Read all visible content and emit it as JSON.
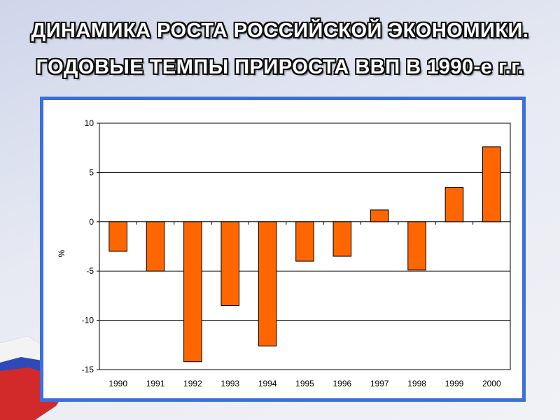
{
  "slide": {
    "title_line1": "ДИНАМИКА РОСТА РОССИЙСКОЙ ЭКОНОМИКИ.",
    "title_line2": "ГОДОВЫЕ ТЕМПЫ ПРИРОСТА ВВП В 1990-е г.г."
  },
  "colors": {
    "bar_fill": "#ff6600",
    "bar_stroke": "#000000",
    "frame": "#3a6fdc",
    "gridline": "#000000"
  },
  "chart_data": {
    "type": "bar",
    "title": "",
    "xlabel": "",
    "ylabel": "%",
    "categories": [
      "1990",
      "1991",
      "1992",
      "1993",
      "1994",
      "1995",
      "1996",
      "1997",
      "1998",
      "1999",
      "2000"
    ],
    "series": [
      {
        "values": [
          -3.0,
          -5.0,
          -14.2,
          -8.5,
          -12.6,
          -4.0,
          -3.5,
          1.2,
          -4.9,
          3.5,
          7.6
        ]
      }
    ],
    "ylim": [
      -15,
      10
    ],
    "yticks": [
      "10",
      "5",
      "0",
      "-5",
      "-10",
      "-15"
    ],
    "ytick_values": [
      10,
      5,
      0,
      -5,
      -10,
      -15
    ],
    "grid": "horizontal",
    "legend": "none"
  }
}
